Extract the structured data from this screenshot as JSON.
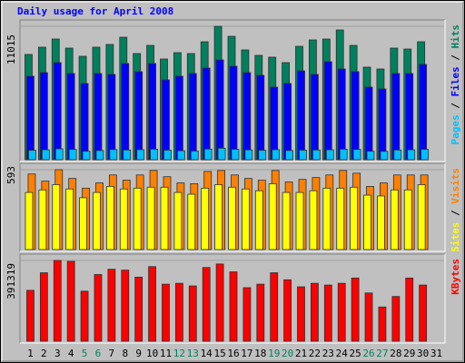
{
  "chart_data": {
    "type": "bar",
    "title": "Daily usage for April 2008",
    "categories": [
      "1",
      "2",
      "3",
      "4",
      "5",
      "6",
      "7",
      "8",
      "9",
      "10",
      "11",
      "12",
      "13",
      "14",
      "15",
      "16",
      "17",
      "18",
      "19",
      "20",
      "21",
      "22",
      "23",
      "24",
      "25",
      "26",
      "27",
      "28",
      "29",
      "30",
      "31"
    ],
    "category_colors": [
      "#000000",
      "#000000",
      "#000000",
      "#000000",
      "#00805c",
      "#00805c",
      "#000000",
      "#000000",
      "#000000",
      "#000000",
      "#000000",
      "#00805c",
      "#00805c",
      "#000000",
      "#000000",
      "#000000",
      "#000000",
      "#000000",
      "#00805c",
      "#00805c",
      "#000000",
      "#000000",
      "#000000",
      "#000000",
      "#000000",
      "#00805c",
      "#00805c",
      "#000000",
      "#000000",
      "#000000",
      "#000000"
    ],
    "panels": [
      {
        "ylim": [
          0,
          11015
        ],
        "yticks": [
          11015
        ],
        "series": [
          {
            "name": "Hits",
            "color": "#00805c",
            "values": [
              8692,
              9291,
              9966,
              9216,
              8542,
              9291,
              9516,
              10116,
              8767,
              9441,
              8317,
              8842,
              8767,
              9741,
              11015,
              10190,
              9067,
              8617,
              8467,
              8017,
              9366,
              9891,
              9966,
              10715,
              9441,
              7643,
              7493,
              9216,
              9141,
              9741,
              null
            ]
          },
          {
            "name": "Files",
            "color": "#0000ff",
            "values": [
              6894,
              7193,
              8017,
              7118,
              6294,
              7118,
              7043,
              7943,
              7268,
              7943,
              6594,
              6894,
              7118,
              7568,
              8242,
              7718,
              7193,
              6968,
              5994,
              6294,
              7343,
              7043,
              8092,
              7493,
              7268,
              5994,
              5844,
              7118,
              7118,
              7868,
              null
            ]
          },
          {
            "name": "Pages",
            "color": "#00c0ff",
            "values": [
              780,
              820,
              900,
              850,
              700,
              760,
              840,
              800,
              830,
              870,
              790,
              740,
              720,
              880,
              950,
              860,
              810,
              780,
              830,
              760,
              790,
              800,
              820,
              870,
              850,
              700,
              690,
              800,
              820,
              860,
              null
            ]
          }
        ]
      },
      {
        "ylim": [
          0,
          593
        ],
        "yticks": [
          593
        ],
        "series": [
          {
            "name": "Visits",
            "color": "#ff8000",
            "values": [
              561,
              508,
              593,
              528,
              456,
              495,
              554,
              515,
              554,
              587,
              541,
              495,
              489,
              580,
              587,
              554,
              528,
              515,
              587,
              502,
              521,
              535,
              554,
              587,
              567,
              469,
              495,
              554,
              554,
              554,
              null
            ]
          },
          {
            "name": "Sites",
            "color": "#ffff00",
            "values": [
              424,
              443,
              482,
              450,
              385,
              424,
              469,
              450,
              456,
              463,
              463,
              424,
              411,
              456,
              482,
              463,
              450,
              437,
              489,
              424,
              424,
              437,
              456,
              456,
              463,
              404,
              398,
              443,
              443,
              482,
              null
            ]
          }
        ]
      },
      {
        "ylim": [
          0,
          391319
        ],
        "yticks": [
          391319
        ],
        "series": [
          {
            "name": "KBytes",
            "color": "#ff0000",
            "values": [
              246674,
              331734,
              391319,
              387023,
              242421,
              323228,
              348746,
              344493,
              310469,
              361505,
              276445,
              280698,
              267939,
              357252,
              374264,
              335987,
              259433,
              276445,
              331734,
              297710,
              263686,
              280698,
              272192,
              280698,
              306216,
              233915,
              165867,
              216903,
              306216,
              272192,
              null
            ]
          }
        ]
      }
    ]
  }
}
